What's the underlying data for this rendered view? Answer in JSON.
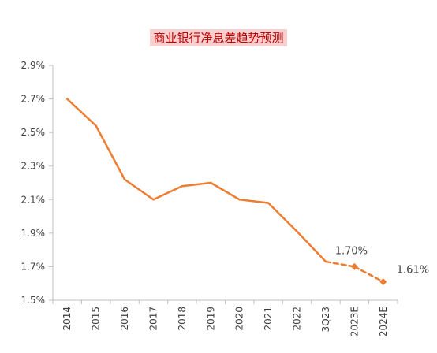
{
  "chart_data": {
    "type": "line",
    "title": "商业银行净息差趋势预测",
    "categories": [
      "2014",
      "2015",
      "2016",
      "2017",
      "2018",
      "2019",
      "2020",
      "2021",
      "2022",
      "3Q23",
      "2023E",
      "2024E"
    ],
    "series": [
      {
        "values": [
          2.7,
          2.54,
          2.22,
          2.1,
          2.18,
          2.2,
          2.1,
          2.08,
          1.91,
          1.73,
          1.7,
          1.61
        ],
        "line_style": [
          "solid",
          "solid",
          "solid",
          "solid",
          "solid",
          "solid",
          "solid",
          "solid",
          "solid",
          "dashed",
          "dashed"
        ],
        "marker_indices": [
          10,
          11
        ],
        "color": "#ed7d31"
      }
    ],
    "data_labels": [
      {
        "index": 10,
        "text": "1.70%"
      },
      {
        "index": 11,
        "text": "1.61%"
      }
    ],
    "ylim": [
      1.5,
      2.9
    ],
    "y_ticks": [
      1.5,
      1.7,
      1.9,
      2.1,
      2.3,
      2.5,
      2.7,
      2.9
    ],
    "y_tick_labels": [
      "1.5%",
      "1.7%",
      "1.9%",
      "2.1%",
      "2.3%",
      "2.5%",
      "2.7%",
      "2.9%"
    ],
    "grid": false,
    "legend": "none",
    "axis_color": "#bfbfbf"
  }
}
